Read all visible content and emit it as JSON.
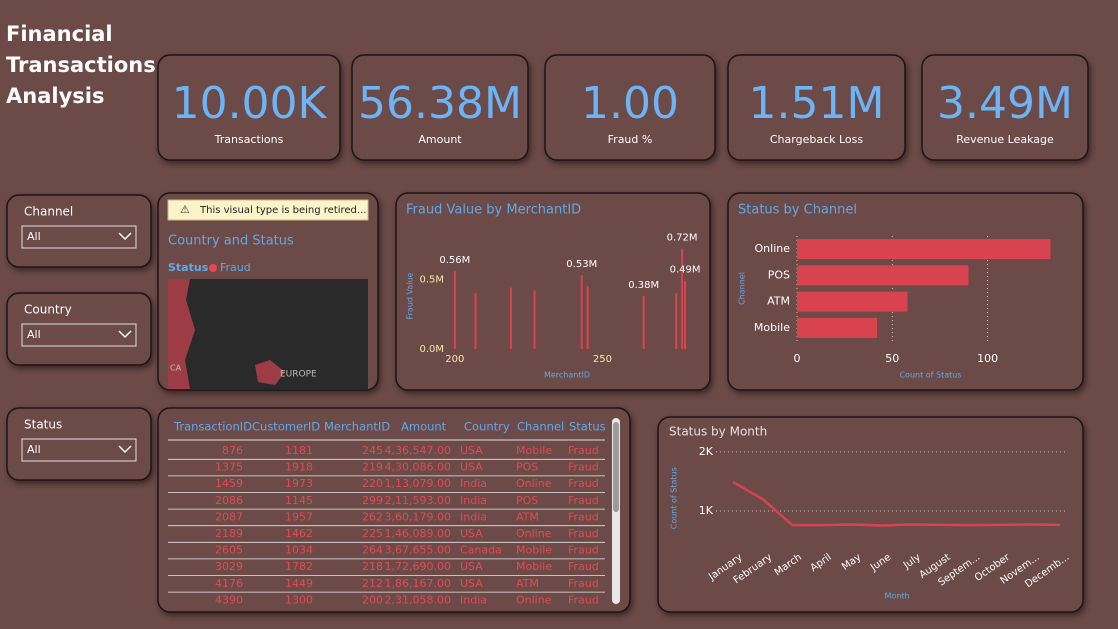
{
  "title": [
    "Financial",
    "Transactions",
    "Analysis"
  ],
  "kpis": [
    {
      "value": "10.00K",
      "label": "Transactions"
    },
    {
      "value": "56.38M",
      "label": "Amount"
    },
    {
      "value": "1.00",
      "label": "Fraud %"
    },
    {
      "value": "1.51M",
      "label": "Chargeback Loss"
    },
    {
      "value": "3.49M",
      "label": "Revenue Leakage"
    }
  ],
  "slicers": [
    {
      "label": "Channel",
      "selection": "All"
    },
    {
      "label": "Country",
      "selection": "All"
    },
    {
      "label": "Status",
      "selection": "All"
    }
  ],
  "map": {
    "warning": "This visual type is being retired...",
    "title": "Country and Status",
    "legend_title": "Status",
    "legend_item": "Fraud",
    "region_labels": [
      "EUROPE",
      "CA"
    ]
  },
  "table": {
    "columns": [
      "TransactionID",
      "CustomerID",
      "MerchantID",
      "Amount",
      "Country",
      "Channel",
      "Status"
    ],
    "rows": [
      [
        "876",
        "1181",
        "245",
        "4,36,547.00",
        "USA",
        "Mobile",
        "Fraud"
      ],
      [
        "1375",
        "1918",
        "219",
        "4,30,086.00",
        "USA",
        "POS",
        "Fraud"
      ],
      [
        "1459",
        "1973",
        "220",
        "1,13,079.00",
        "India",
        "Online",
        "Fraud"
      ],
      [
        "2086",
        "1145",
        "299",
        "2,11,593.00",
        "India",
        "POS",
        "Fraud"
      ],
      [
        "2087",
        "1957",
        "262",
        "3,60,179.00",
        "India",
        "ATM",
        "Fraud"
      ],
      [
        "2189",
        "1462",
        "225",
        "1,46,089.00",
        "USA",
        "Online",
        "Fraud"
      ],
      [
        "2605",
        "1034",
        "264",
        "3,67,655.00",
        "Canada",
        "Mobile",
        "Fraud"
      ],
      [
        "3029",
        "1782",
        "218",
        "1,72,690.00",
        "USA",
        "Mobile",
        "Fraud"
      ],
      [
        "4176",
        "1449",
        "212",
        "1,86,167.00",
        "USA",
        "ATM",
        "Fraud"
      ],
      [
        "4390",
        "1300",
        "200",
        "2,31,058.00",
        "India",
        "Online",
        "Fraud"
      ]
    ]
  },
  "chart_data": [
    {
      "type": "bar",
      "title": "Fraud Value by MerchantID",
      "x_label": "MerchantID",
      "y_label": "Fraud Value",
      "x": [
        200,
        207,
        219,
        227,
        243,
        245,
        264,
        275,
        277,
        278
      ],
      "values": [
        560000,
        400000,
        440000,
        420000,
        530000,
        450000,
        380000,
        400000,
        720000,
        490000
      ],
      "value_labels": [
        "0.56M",
        null,
        null,
        null,
        "0.53M",
        null,
        "0.38M",
        null,
        "0.72M",
        "0.49M"
      ],
      "color": "#d9434f",
      "xlim": [
        197,
        279
      ],
      "xticks": [
        200,
        250
      ],
      "ylim": [
        0,
        760000
      ],
      "yticks": [
        {
          "value": 0,
          "label": "0.0M"
        },
        {
          "value": 500000,
          "label": "0.5M"
        }
      ]
    },
    {
      "type": "hbar",
      "title": "Status by Channel",
      "x_label": "Count of Status",
      "y_label": "Channel",
      "categories": [
        "Online",
        "POS",
        "ATM",
        "Mobile"
      ],
      "values": [
        133,
        90,
        58,
        42
      ],
      "color": "#d9434f",
      "xlim": [
        0,
        138
      ],
      "xticks": [
        0,
        50,
        100
      ],
      "grid": true
    },
    {
      "type": "line",
      "title": "Status by Month",
      "x_label": "Month",
      "y_label": "Count of Status",
      "categories": [
        "January",
        "February",
        "March",
        "April",
        "May",
        "June",
        "July",
        "August",
        "Septem...",
        "October",
        "Novem...",
        "Decemb..."
      ],
      "values": [
        1490,
        1200,
        760,
        760,
        770,
        755,
        770,
        765,
        760,
        765,
        770,
        765
      ],
      "color": "#d9434f",
      "ylim": [
        500,
        2100
      ],
      "yticks": [
        {
          "value": 1000,
          "label": "1K"
        },
        {
          "value": 2000,
          "label": "2K"
        }
      ],
      "grid": true
    }
  ]
}
